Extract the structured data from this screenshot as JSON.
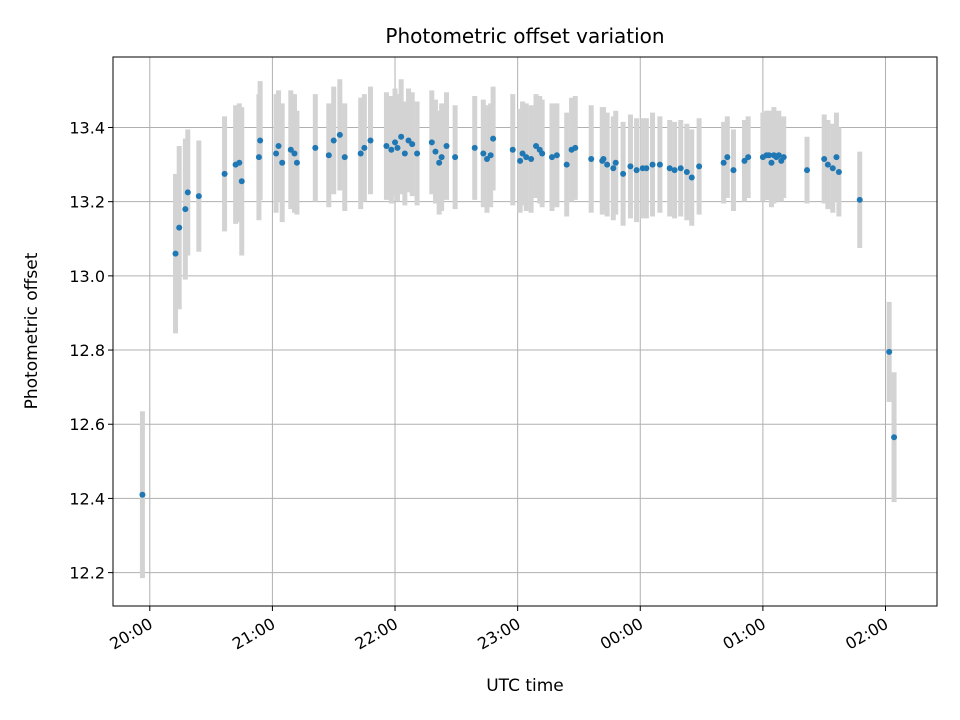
{
  "chart_data": {
    "type": "scatter",
    "title": "Photometric offset variation",
    "xlabel": "UTC time",
    "ylabel": "Photometric offset",
    "x_tick_labels": [
      "20:00",
      "21:00",
      "22:00",
      "23:00",
      "00:00",
      "01:00",
      "02:00"
    ],
    "x_tick_hours": [
      20,
      21,
      22,
      23,
      24,
      25,
      26
    ],
    "xlim_hours": [
      19.7,
      26.42
    ],
    "y_ticks": [
      12.2,
      12.4,
      12.6,
      12.8,
      13.0,
      13.2,
      13.4
    ],
    "y_tick_labels": [
      "12.2",
      "12.4",
      "12.6",
      "12.8",
      "13.0",
      "13.2",
      "13.4"
    ],
    "ylim": [
      12.11,
      13.59
    ],
    "grid": true,
    "marker_color": "#1f77b4",
    "errorbar_color": "#d3d3d3",
    "series": [
      {
        "x_hours": [
          19.94,
          20.21,
          20.24,
          20.29,
          20.31,
          20.4,
          20.61,
          20.7,
          20.73,
          20.75,
          20.89,
          20.9,
          21.03,
          21.05,
          21.08,
          21.15,
          21.18,
          21.2,
          21.35,
          21.46,
          21.5,
          21.55,
          21.59,
          21.72,
          21.75,
          21.8,
          21.93,
          21.97,
          22.0,
          22.02,
          22.05,
          22.08,
          22.11,
          22.14,
          22.18,
          22.3,
          22.33,
          22.36,
          22.38,
          22.42,
          22.49,
          22.65,
          22.72,
          22.75,
          22.78,
          22.8,
          22.96,
          23.02,
          23.04,
          23.07,
          23.11,
          23.15,
          23.18,
          23.2,
          23.28,
          23.32,
          23.4,
          23.44,
          23.47,
          23.6,
          23.69,
          23.7,
          23.73,
          23.78,
          23.8,
          23.86,
          23.92,
          23.97,
          24.02,
          24.05,
          24.1,
          24.16,
          24.24,
          24.28,
          24.33,
          24.38,
          24.42,
          24.48,
          24.68,
          24.71,
          24.76,
          24.85,
          24.88,
          25.0,
          25.03,
          25.05,
          25.07,
          25.09,
          25.11,
          25.13,
          25.15,
          25.17,
          25.36,
          25.5,
          25.53,
          25.57,
          25.6,
          25.62,
          25.79,
          26.03,
          26.07
        ],
        "y": [
          12.41,
          13.06,
          13.13,
          13.18,
          13.225,
          13.215,
          13.275,
          13.3,
          13.305,
          13.255,
          13.32,
          13.365,
          13.33,
          13.35,
          13.305,
          13.34,
          13.33,
          13.305,
          13.345,
          13.325,
          13.365,
          13.38,
          13.32,
          13.33,
          13.345,
          13.365,
          13.35,
          13.34,
          13.36,
          13.345,
          13.375,
          13.33,
          13.365,
          13.355,
          13.33,
          13.36,
          13.335,
          13.305,
          13.32,
          13.35,
          13.32,
          13.345,
          13.33,
          13.315,
          13.325,
          13.37,
          13.34,
          13.31,
          13.33,
          13.32,
          13.315,
          13.35,
          13.34,
          13.33,
          13.32,
          13.325,
          13.3,
          13.34,
          13.345,
          13.315,
          13.31,
          13.315,
          13.3,
          13.29,
          13.305,
          13.275,
          13.295,
          13.285,
          13.29,
          13.29,
          13.3,
          13.3,
          13.29,
          13.285,
          13.29,
          13.28,
          13.265,
          13.295,
          13.305,
          13.32,
          13.285,
          13.31,
          13.32,
          13.32,
          13.325,
          13.325,
          13.305,
          13.325,
          13.32,
          13.325,
          13.31,
          13.32,
          13.285,
          13.315,
          13.3,
          13.29,
          13.32,
          13.28,
          13.205,
          12.795,
          12.565
        ],
        "y_err": [
          0.225,
          0.215,
          0.22,
          0.19,
          0.17,
          0.15,
          0.155,
          0.16,
          0.16,
          0.2,
          0.17,
          0.16,
          0.16,
          0.15,
          0.16,
          0.16,
          0.16,
          0.14,
          0.145,
          0.14,
          0.145,
          0.15,
          0.145,
          0.15,
          0.145,
          0.145,
          0.145,
          0.145,
          0.145,
          0.145,
          0.155,
          0.14,
          0.14,
          0.14,
          0.14,
          0.14,
          0.14,
          0.14,
          0.145,
          0.145,
          0.14,
          0.14,
          0.145,
          0.145,
          0.14,
          0.14,
          0.15,
          0.14,
          0.14,
          0.145,
          0.145,
          0.14,
          0.145,
          0.145,
          0.145,
          0.14,
          0.14,
          0.14,
          0.14,
          0.145,
          0.145,
          0.14,
          0.14,
          0.14,
          0.14,
          0.14,
          0.14,
          0.14,
          0.135,
          0.135,
          0.14,
          0.13,
          0.13,
          0.13,
          0.13,
          0.13,
          0.13,
          0.13,
          0.11,
          0.11,
          0.11,
          0.11,
          0.11,
          0.12,
          0.12,
          0.12,
          0.12,
          0.13,
          0.12,
          0.12,
          0.11,
          0.11,
          0.09,
          0.12,
          0.12,
          0.12,
          0.12,
          0.12,
          0.13,
          0.135,
          0.175
        ]
      }
    ]
  }
}
